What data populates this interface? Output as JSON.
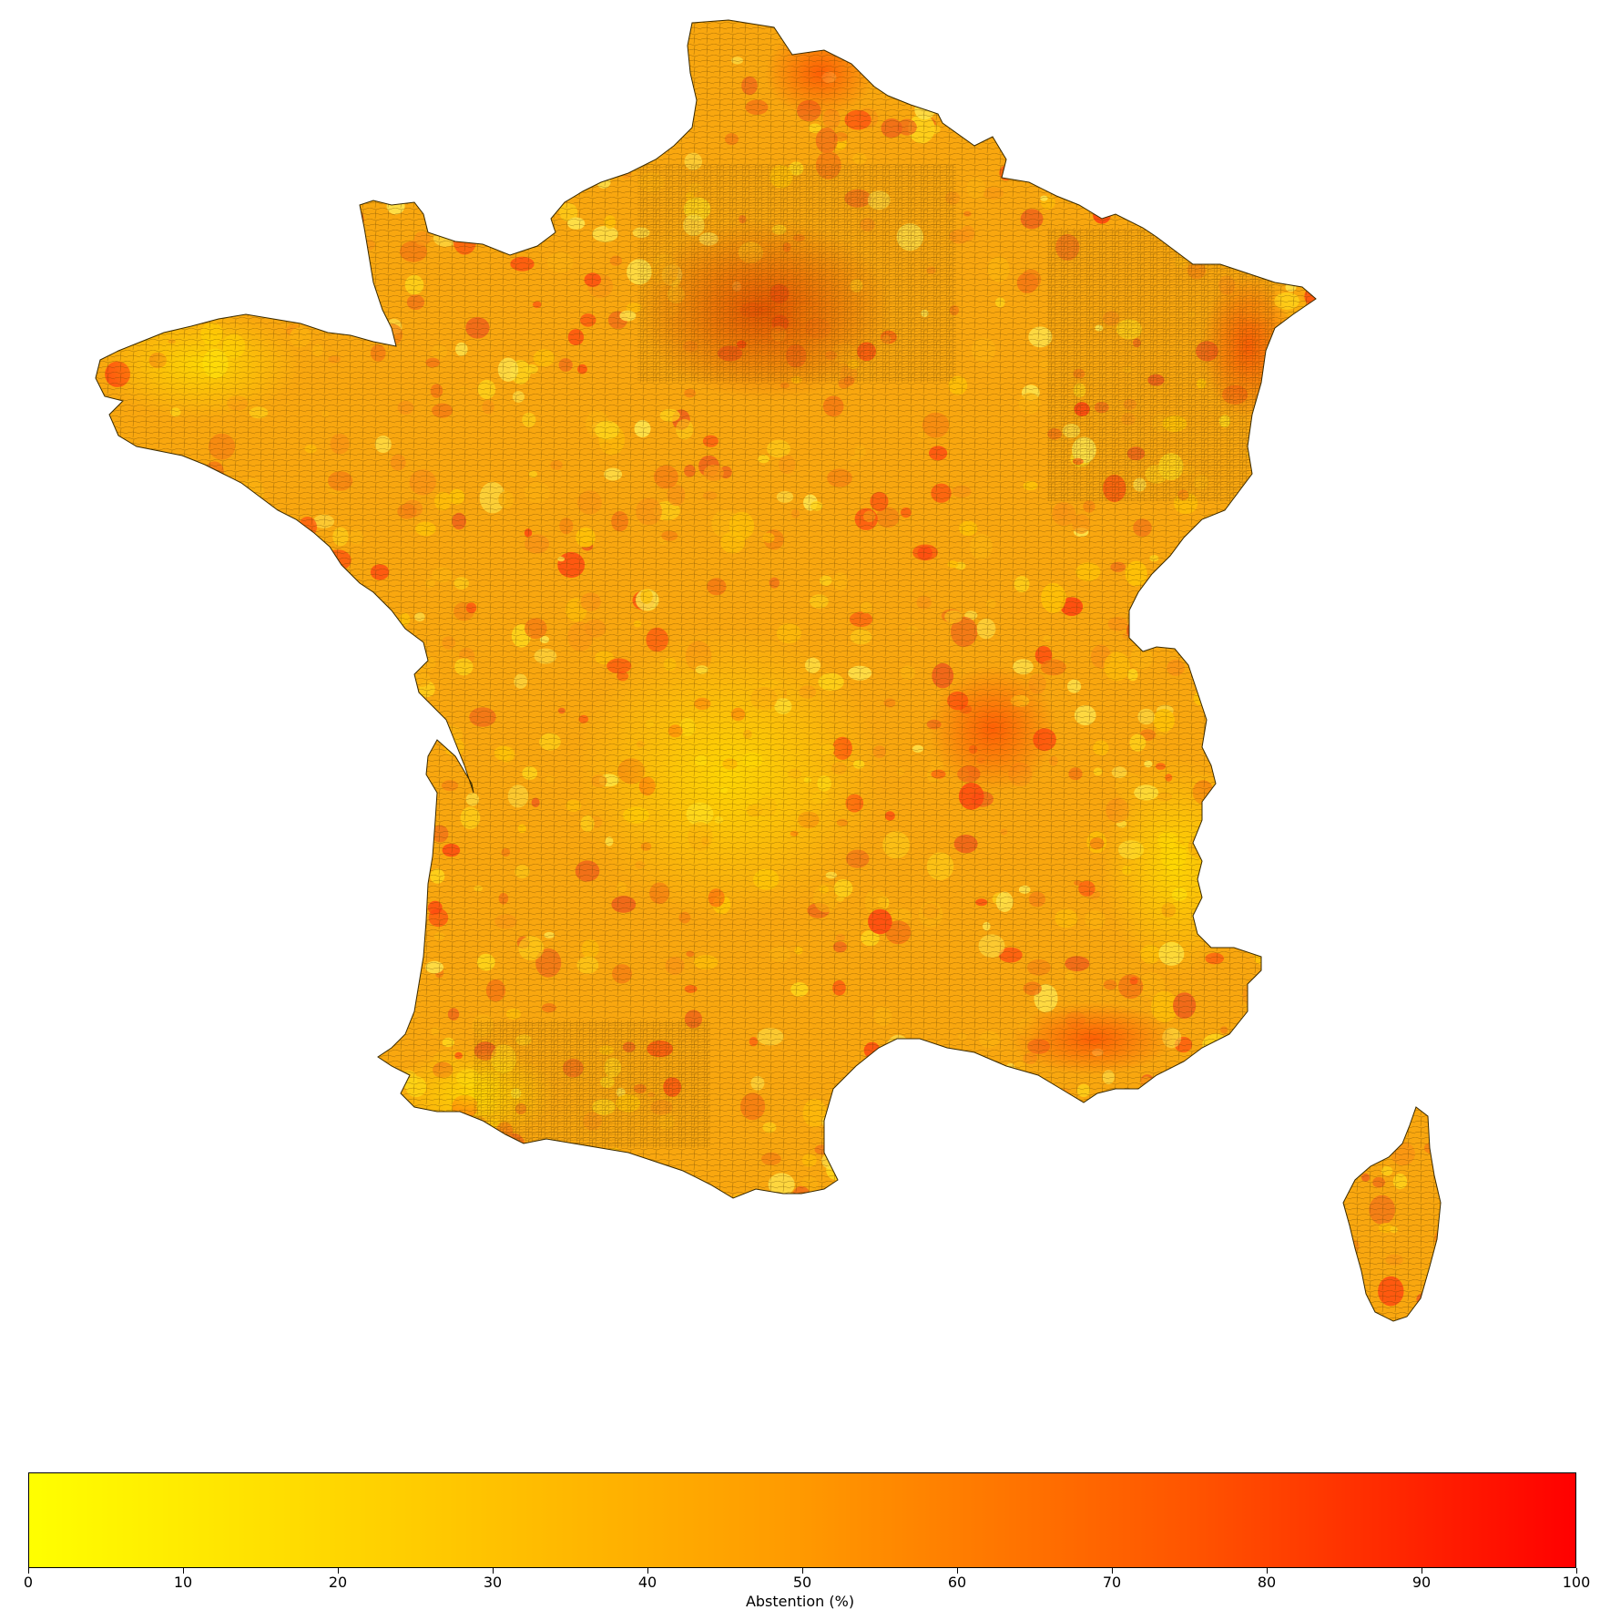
{
  "map": {
    "region": "France",
    "variable": "Abstention",
    "palette": {
      "low": "#ffff00",
      "mid": "#ff9900",
      "high": "#ff0000",
      "border": "#3a2a00"
    }
  },
  "colorbar": {
    "min": 0,
    "max": 100,
    "label": "Abstention (%)",
    "ticks": [
      "0",
      "10",
      "20",
      "30",
      "40",
      "50",
      "60",
      "70",
      "80",
      "90",
      "100"
    ],
    "colors": [
      "#ffff00",
      "#ffcc00",
      "#ff9900",
      "#ff5500",
      "#ff0000"
    ]
  }
}
